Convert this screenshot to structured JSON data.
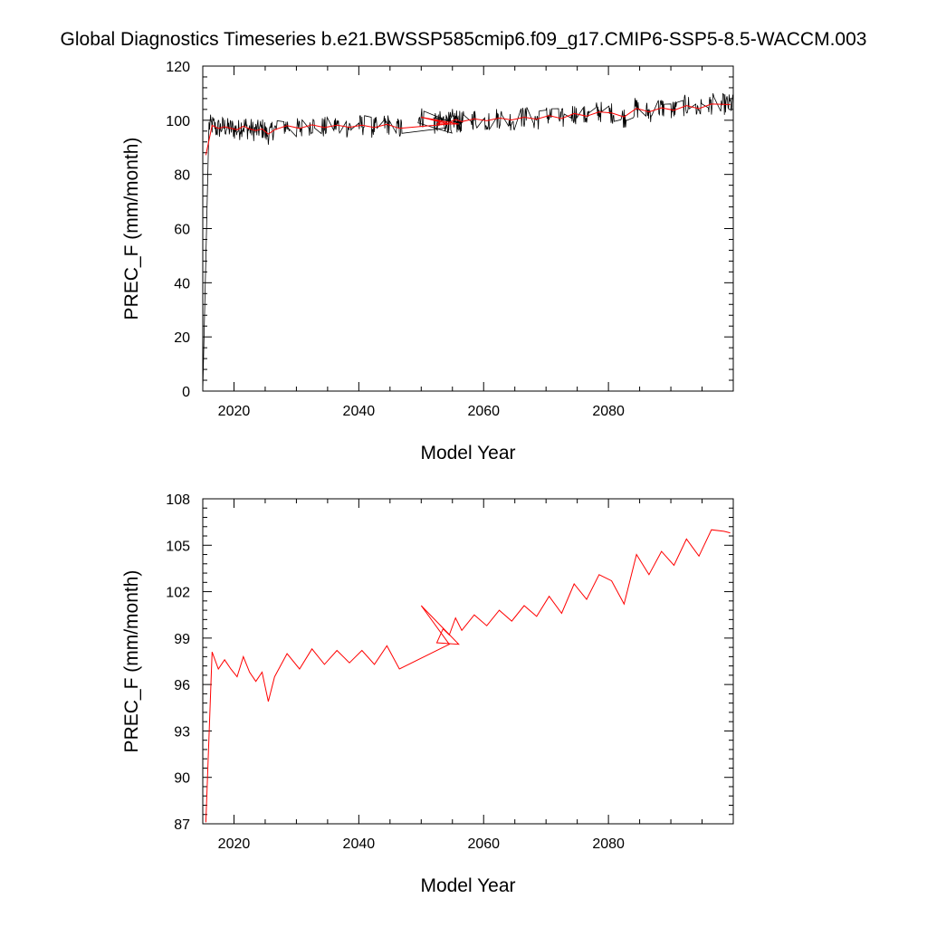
{
  "title": "Global Diagnostics Timeseries b.e21.BWSSP585cmip6.f09_g17.CMIP6-SSP5-8.5-WACCM.003",
  "colors": {
    "monthly": "#000000",
    "annual": "#ff0000",
    "axes": "#000000"
  },
  "chart_data": [
    {
      "type": "line",
      "panel": "top",
      "xlabel": "Model Year",
      "ylabel": "PREC_F (mm/month)",
      "xlim": [
        2015,
        2100
      ],
      "ylim": [
        0,
        120
      ],
      "xticks": [
        2020,
        2040,
        2060,
        2080
      ],
      "yticks": [
        0,
        20,
        40,
        60,
        80,
        100,
        120
      ],
      "grid": false,
      "series": [
        {
          "name": "monthly",
          "note": "monthly PREC_F, noisy around annual mean (~+/-4); line starts at 0 in 2015",
          "start_point": [
            2015.0,
            0
          ],
          "noise_amplitude": 4.0
        },
        {
          "name": "annual",
          "x": [
            2015.5,
            2016.5,
            2017.5,
            2018.5,
            2019.5,
            2020.5,
            2021.5,
            2022.5,
            2023.5,
            2024.5,
            2025.5,
            2026.5,
            2028.5,
            2030.5,
            2032.5,
            2034.5,
            2036.5,
            2038.5,
            2040.5,
            2042.5,
            2044.5,
            2046.5,
            2054.5,
            2050,
            2056,
            2052.5,
            2053.5,
            2054.5,
            2055.5,
            2056.5,
            2058.5,
            2060.5,
            2062.5,
            2064.5,
            2066.5,
            2068.5,
            2070.5,
            2072.5,
            2074.5,
            2076.5,
            2078.5,
            2080.5,
            2082.5,
            2084.5,
            2086.5,
            2088.5,
            2090.5,
            2092.5,
            2094.5,
            2096.5,
            2098.5,
            2099.5
          ],
          "values": [
            87.1,
            98.1,
            97.0,
            97.6,
            97.0,
            96.5,
            97.8,
            96.8,
            96.2,
            96.8,
            94.9,
            96.5,
            98.0,
            97.0,
            98.3,
            97.3,
            98.2,
            97.4,
            98.2,
            97.3,
            98.5,
            97.0,
            98.6,
            101.1,
            98.6,
            98.7,
            99.6,
            99.2,
            100.3,
            99.5,
            100.5,
            99.8,
            100.8,
            100.1,
            101.1,
            100.4,
            101.7,
            100.6,
            102.5,
            101.5,
            103.1,
            102.7,
            101.2,
            104.4,
            103.1,
            104.6,
            103.7,
            105.4,
            104.3,
            106.0,
            105.9,
            105.8
          ]
        }
      ]
    },
    {
      "type": "line",
      "panel": "bottom",
      "xlabel": "Model Year",
      "ylabel": "PREC_F (mm/month)",
      "xlim": [
        2015,
        2100
      ],
      "ylim": [
        87,
        108
      ],
      "xticks": [
        2020,
        2040,
        2060,
        2080
      ],
      "yticks": [
        87,
        90,
        93,
        96,
        99,
        102,
        105,
        108
      ],
      "grid": false,
      "series": [
        {
          "name": "annual",
          "x": [
            2015.5,
            2016.5,
            2017.5,
            2018.5,
            2019.5,
            2020.5,
            2021.5,
            2022.5,
            2023.5,
            2024.5,
            2025.5,
            2026.5,
            2028.5,
            2030.5,
            2032.5,
            2034.5,
            2036.5,
            2038.5,
            2040.5,
            2042.5,
            2044.5,
            2046.5,
            2054.5,
            2050,
            2056,
            2052.5,
            2053.5,
            2054.5,
            2055.5,
            2056.5,
            2058.5,
            2060.5,
            2062.5,
            2064.5,
            2066.5,
            2068.5,
            2070.5,
            2072.5,
            2074.5,
            2076.5,
            2078.5,
            2080.5,
            2082.5,
            2084.5,
            2086.5,
            2088.5,
            2090.5,
            2092.5,
            2094.5,
            2096.5,
            2098.5,
            2099.5
          ],
          "values": [
            87.1,
            98.1,
            97.0,
            97.6,
            97.0,
            96.5,
            97.8,
            96.8,
            96.2,
            96.8,
            94.9,
            96.5,
            98.0,
            97.0,
            98.3,
            97.3,
            98.2,
            97.4,
            98.2,
            97.3,
            98.5,
            97.0,
            98.6,
            101.1,
            98.6,
            98.7,
            99.6,
            99.2,
            100.3,
            99.5,
            100.5,
            99.8,
            100.8,
            100.1,
            101.1,
            100.4,
            101.7,
            100.6,
            102.5,
            101.5,
            103.1,
            102.7,
            101.2,
            104.4,
            103.1,
            104.6,
            103.7,
            105.4,
            104.3,
            106.0,
            105.9,
            105.8
          ]
        }
      ]
    }
  ]
}
